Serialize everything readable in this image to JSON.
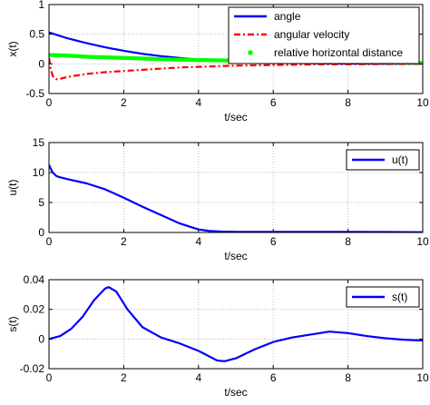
{
  "colors": {
    "angle": "#0000ff",
    "angular_velocity": "#ff0000",
    "relative_distance": "#00ff00",
    "u": "#0000ff",
    "s": "#0000ff",
    "grid": "#cccccc"
  },
  "chart_data": [
    {
      "type": "line",
      "xlabel": "t/sec",
      "ylabel": "x(t)",
      "xlim": [
        0,
        10
      ],
      "ylim": [
        -0.5,
        1
      ],
      "xticks": [
        0,
        2,
        4,
        6,
        8,
        10
      ],
      "yticks": [
        -0.5,
        0,
        0.5,
        1
      ],
      "xtick_labels": [
        "0",
        "2",
        "4",
        "6",
        "8",
        "10"
      ],
      "ytick_labels": [
        "-0.5",
        "0",
        "0.5",
        "1"
      ],
      "grid": true,
      "legend_position": "top-right",
      "series": [
        {
          "name": "angle",
          "style": "solid",
          "color_key": "angle",
          "x": [
            0,
            0.5,
            1,
            1.5,
            2,
            2.5,
            3,
            3.5,
            4,
            4.5,
            5,
            6,
            7,
            8,
            9,
            10
          ],
          "y": [
            0.53,
            0.43,
            0.35,
            0.28,
            0.22,
            0.17,
            0.13,
            0.1,
            0.07,
            0.05,
            0.04,
            0.02,
            0.01,
            0.005,
            0.003,
            0.002
          ]
        },
        {
          "name": "angular velocity",
          "style": "dash-dot",
          "color_key": "angular_velocity",
          "x": [
            0,
            0.05,
            0.1,
            0.15,
            0.2,
            0.3,
            0.5,
            0.8,
            1,
            1.5,
            2,
            2.5,
            3,
            3.5,
            4,
            5,
            6,
            7,
            8,
            9,
            10
          ],
          "y": [
            0.1,
            -0.1,
            -0.2,
            -0.24,
            -0.26,
            -0.25,
            -0.22,
            -0.19,
            -0.17,
            -0.14,
            -0.12,
            -0.1,
            -0.08,
            -0.06,
            -0.05,
            -0.03,
            -0.02,
            -0.01,
            -0.006,
            -0.003,
            -0.001
          ]
        },
        {
          "name": "relative horizontal distance",
          "style": "dots",
          "color_key": "relative_distance",
          "x": [
            0,
            0.5,
            1,
            1.5,
            2,
            2.5,
            3,
            3.5,
            4,
            4.5,
            5,
            6,
            7,
            8,
            9,
            10
          ],
          "y": [
            0.15,
            0.14,
            0.12,
            0.11,
            0.1,
            0.09,
            0.08,
            0.07,
            0.065,
            0.06,
            0.055,
            0.045,
            0.035,
            0.03,
            0.025,
            0.02
          ]
        }
      ]
    },
    {
      "type": "line",
      "xlabel": "t/sec",
      "ylabel": "u(t)",
      "xlim": [
        0,
        10
      ],
      "ylim": [
        0,
        15
      ],
      "xticks": [
        0,
        2,
        4,
        6,
        8,
        10
      ],
      "yticks": [
        0,
        5,
        10,
        15
      ],
      "xtick_labels": [
        "0",
        "2",
        "4",
        "6",
        "8",
        "10"
      ],
      "ytick_labels": [
        "0",
        "5",
        "10",
        "15"
      ],
      "grid": true,
      "legend_position": "top-right",
      "series": [
        {
          "name": "u(t)",
          "style": "solid",
          "color_key": "u",
          "x": [
            0,
            0.05,
            0.1,
            0.2,
            0.3,
            0.5,
            1,
            1.5,
            2,
            2.5,
            3,
            3.5,
            4,
            4.3,
            4.6,
            5,
            6,
            7,
            8,
            9,
            10
          ],
          "y": [
            11.3,
            10.6,
            10,
            9.4,
            9.2,
            8.9,
            8.2,
            7.2,
            5.8,
            4.3,
            2.9,
            1.5,
            0.5,
            0.25,
            0.15,
            0.1,
            0.1,
            0.1,
            0.1,
            0.08,
            0.05
          ]
        }
      ]
    },
    {
      "type": "line",
      "xlabel": "t/sec",
      "ylabel": "s(t)",
      "xlim": [
        0,
        10
      ],
      "ylim": [
        -0.02,
        0.04
      ],
      "xticks": [
        0,
        2,
        4,
        6,
        8,
        10
      ],
      "yticks": [
        -0.02,
        0,
        0.02,
        0.04
      ],
      "xtick_labels": [
        "0",
        "2",
        "4",
        "6",
        "8",
        "10"
      ],
      "ytick_labels": [
        "-0.02",
        "0",
        "0.02",
        "0.04"
      ],
      "grid": true,
      "legend_position": "top-right",
      "series": [
        {
          "name": "s(t)",
          "style": "solid",
          "color_key": "s",
          "x": [
            0,
            0.3,
            0.6,
            0.9,
            1.2,
            1.5,
            1.6,
            1.8,
            2.1,
            2.5,
            3,
            3.5,
            4,
            4.5,
            4.7,
            5,
            5.5,
            6,
            6.5,
            7,
            7.5,
            8,
            8.5,
            9,
            9.5,
            10
          ],
          "y": [
            0,
            0.002,
            0.007,
            0.015,
            0.026,
            0.034,
            0.035,
            0.032,
            0.02,
            0.008,
            0.001,
            -0.003,
            -0.008,
            -0.0145,
            -0.015,
            -0.013,
            -0.007,
            -0.002,
            0.001,
            0.003,
            0.005,
            0.004,
            0.002,
            0.0005,
            -0.0005,
            -0.001
          ]
        }
      ]
    }
  ]
}
